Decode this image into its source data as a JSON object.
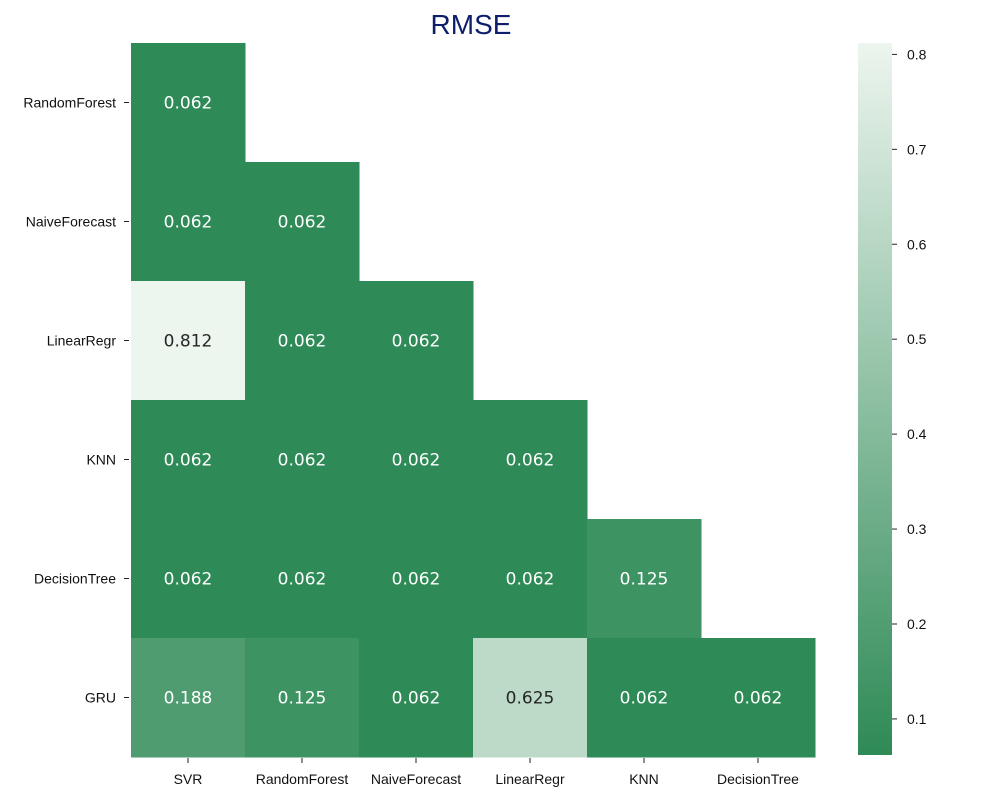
{
  "chart_data": {
    "type": "heatmap",
    "title": "RMSE",
    "title_color": "#0d1f6b",
    "x_categories": [
      "SVR",
      "RandomForest",
      "NaiveForecast",
      "LinearRegr",
      "KNN",
      "DecisionTree"
    ],
    "y_categories": [
      "RandomForest",
      "NaiveForecast",
      "LinearRegr",
      "KNN",
      "DecisionTree",
      "GRU"
    ],
    "values": [
      [
        0.062,
        null,
        null,
        null,
        null,
        null
      ],
      [
        0.062,
        0.062,
        null,
        null,
        null,
        null
      ],
      [
        0.812,
        0.062,
        0.062,
        null,
        null,
        null
      ],
      [
        0.062,
        0.062,
        0.062,
        0.062,
        null,
        null
      ],
      [
        0.062,
        0.062,
        0.062,
        0.062,
        0.125,
        null
      ],
      [
        0.188,
        0.125,
        0.062,
        0.625,
        0.062,
        0.062
      ]
    ],
    "value_labels": [
      [
        "0.062",
        null,
        null,
        null,
        null,
        null
      ],
      [
        "0.062",
        "0.062",
        null,
        null,
        null,
        null
      ],
      [
        "0.812",
        "0.062",
        "0.062",
        null,
        null,
        null
      ],
      [
        "0.062",
        "0.062",
        "0.062",
        "0.062",
        null,
        null
      ],
      [
        "0.062",
        "0.062",
        "0.062",
        "0.062",
        "0.125",
        null
      ],
      [
        "0.188",
        "0.125",
        "0.062",
        "0.625",
        "0.062",
        "0.062"
      ]
    ],
    "mask": "upper-triangle",
    "colorbar": {
      "min": 0.062,
      "max": 0.812,
      "ticks": [
        0.1,
        0.2,
        0.3,
        0.4,
        0.5,
        0.6,
        0.7,
        0.8
      ],
      "tick_labels": [
        "0.1",
        "0.2",
        "0.3",
        "0.4",
        "0.5",
        "0.6",
        "0.7",
        "0.8"
      ],
      "color_low": "#2e8a56",
      "color_high": "#edf5ef",
      "placement": "right"
    },
    "grid": false
  }
}
